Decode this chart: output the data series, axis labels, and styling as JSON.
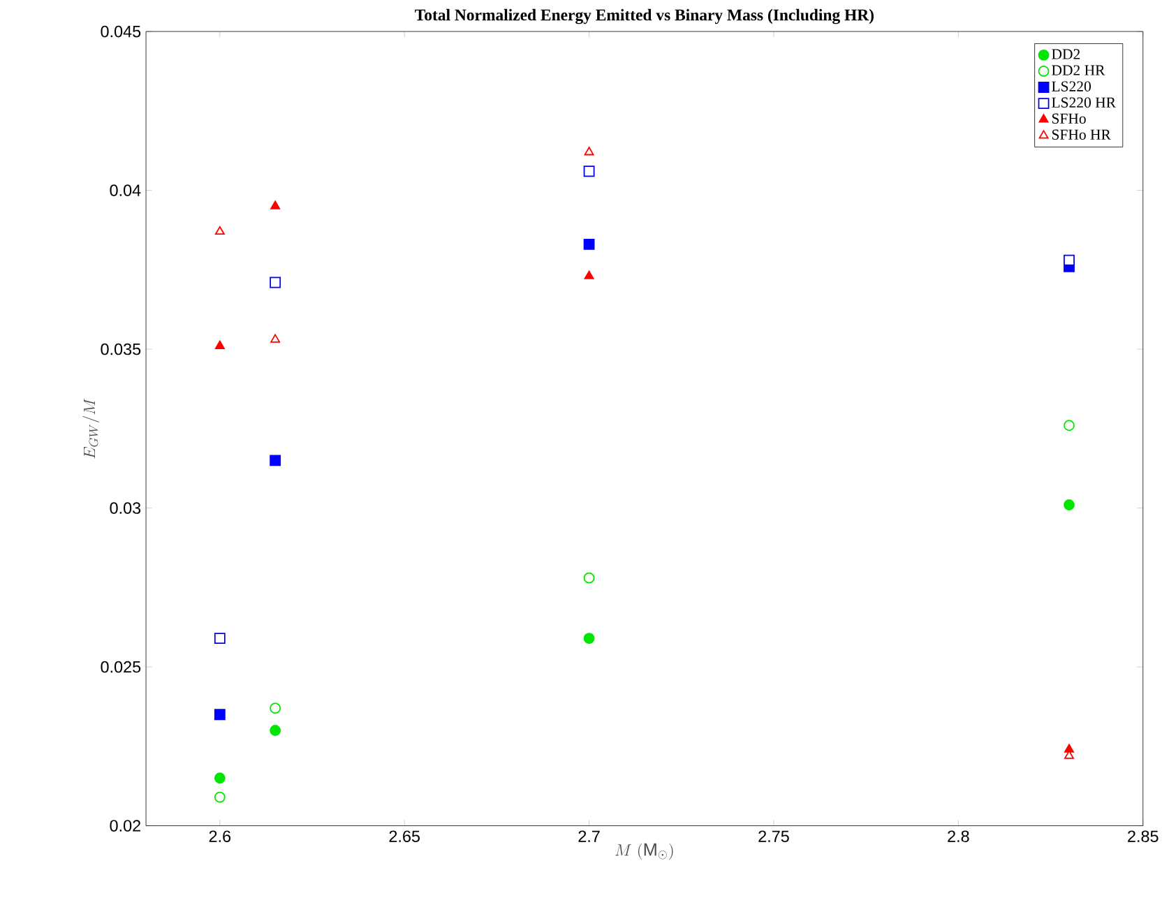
{
  "chart_data": {
    "type": "scatter",
    "title": "Total Normalized Energy Emitted vs Binary Mass (Including HR)",
    "xlabel": "M\\ (\\mathrm{M}_\\odot)",
    "ylabel": "E_{GW}/M",
    "x": [
      2.6,
      2.615,
      2.7,
      2.83
    ],
    "xlim": [
      2.58,
      2.85
    ],
    "xticks": [
      2.6,
      2.65,
      2.7,
      2.75,
      2.8,
      2.85
    ],
    "ylim": [
      0.02,
      0.045
    ],
    "yticks": [
      0.02,
      0.025,
      0.03,
      0.035,
      0.04,
      0.045
    ],
    "grid": false,
    "legend": "top right",
    "series": [
      {
        "name": "DD2",
        "color": "#00e600",
        "marker": "circle",
        "values": [
          0.0215,
          0.023,
          0.0259,
          0.0301
        ]
      },
      {
        "name": "DD2 HR",
        "color": "#00e600",
        "marker": "circle-open",
        "values": [
          0.0209,
          0.0237,
          0.0278,
          0.0326
        ]
      },
      {
        "name": "LS220",
        "color": "#0000ff",
        "marker": "square",
        "values": [
          0.0235,
          0.0315,
          0.0383,
          0.0376
        ]
      },
      {
        "name": "LS220 HR",
        "color": "#0000ff",
        "marker": "square-open",
        "values": [
          0.0259,
          0.0371,
          0.0406,
          0.0378
        ]
      },
      {
        "name": "SFHo",
        "color": "#ff0000",
        "marker": "triangle",
        "values": [
          0.0351,
          0.0395,
          0.0373,
          0.0224
        ]
      },
      {
        "name": "SFHo HR",
        "color": "#ff0000",
        "marker": "triangle-open",
        "values": [
          0.0387,
          0.0353,
          0.0412,
          0.0222
        ]
      }
    ]
  }
}
